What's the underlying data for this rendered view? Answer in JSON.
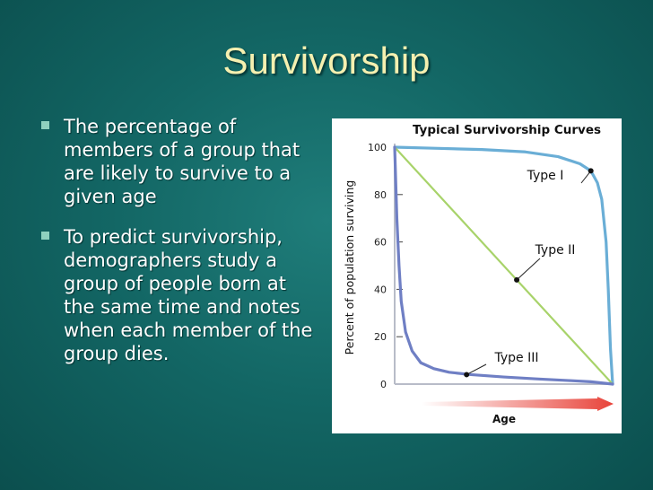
{
  "slide": {
    "title": "Survivorship",
    "bullets": [
      "The percentage of members of a group that are likely to survive to a given age",
      "To predict survivorship, demographers study a group of people born at the same time and notes when each member of the group dies."
    ]
  },
  "colors": {
    "background": "#136765",
    "title": "#f5f0b0",
    "type1_curve": "#6aaed6",
    "type2_curve": "#a8d36a",
    "type3_curve": "#6f7fc4",
    "age_arrow": "#e8433a"
  },
  "chart_data": {
    "type": "line",
    "title": "Typical Survivorship Curves",
    "xlabel": "Age",
    "ylabel": "Percent of population surviving",
    "xlim": [
      0,
      100
    ],
    "ylim": [
      0,
      100
    ],
    "y_ticks": [
      0,
      20,
      40,
      60,
      80,
      100
    ],
    "grid": false,
    "legend": "inline labels",
    "series": [
      {
        "name": "Type I",
        "x": [
          0,
          20,
          40,
          60,
          75,
          85,
          90,
          93,
          95,
          97,
          98,
          99,
          100
        ],
        "y": [
          100,
          99.5,
          99,
          98,
          96,
          93,
          90,
          85,
          78,
          60,
          40,
          15,
          0
        ],
        "marker_index": 6
      },
      {
        "name": "Type II",
        "x": [
          0,
          100
        ],
        "y": [
          100,
          0
        ],
        "marker_point": [
          56,
          44
        ]
      },
      {
        "name": "Type III",
        "x": [
          0,
          0.5,
          1,
          2,
          3,
          5,
          8,
          12,
          18,
          25,
          35,
          50,
          65,
          80,
          90,
          100
        ],
        "y": [
          100,
          85,
          70,
          50,
          35,
          22,
          14,
          9,
          6.5,
          5,
          4,
          3,
          2.2,
          1.5,
          1,
          0
        ],
        "marker_point": [
          33,
          4
        ]
      }
    ]
  }
}
